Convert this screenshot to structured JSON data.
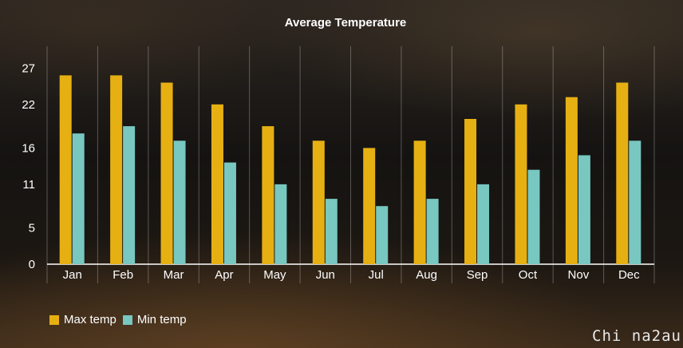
{
  "chart_data": {
    "type": "bar",
    "title": "Average Temperature",
    "categories": [
      "Jan",
      "Feb",
      "Mar",
      "Apr",
      "May",
      "Jun",
      "Jul",
      "Aug",
      "Sep",
      "Oct",
      "Nov",
      "Dec"
    ],
    "series": [
      {
        "name": "Max temp",
        "color": "#e6b013",
        "values": [
          26,
          26,
          25,
          22,
          19,
          17,
          16,
          17,
          20,
          22,
          23,
          25
        ]
      },
      {
        "name": "Min temp",
        "color": "#78c7c0",
        "values": [
          18,
          19,
          17,
          14,
          11,
          9,
          8,
          9,
          11,
          13,
          15,
          17
        ]
      }
    ],
    "y_ticks": [
      "0",
      "5",
      "11",
      "16",
      "22",
      "27"
    ],
    "ylim": [
      0,
      30
    ],
    "grid": "vertical separators",
    "legend_position": "bottom-left"
  },
  "watermark": "Chi na2au"
}
